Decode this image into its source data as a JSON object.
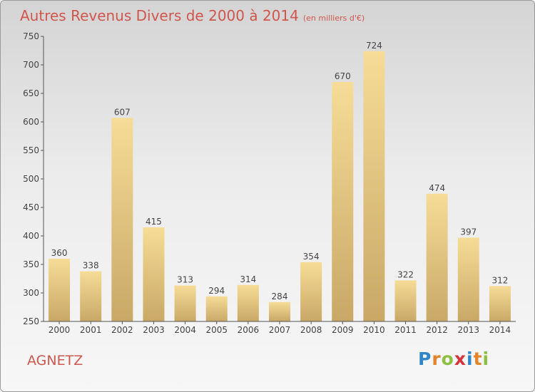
{
  "header": {
    "title": "Autres Revenus Divers de 2000 à 2014",
    "subtitle": "(en milliers d'€)"
  },
  "footer": {
    "town": "AGNETZ",
    "logo": "Proxiti"
  },
  "colors": {
    "title": "#d0564d",
    "bar_top": "#f6dc97",
    "bar_bottom": "#c9a866",
    "axis": "#555555"
  },
  "chart_data": {
    "type": "bar",
    "categories": [
      "2000",
      "2001",
      "2002",
      "2003",
      "2004",
      "2005",
      "2006",
      "2007",
      "2008",
      "2009",
      "2010",
      "2011",
      "2012",
      "2013",
      "2014"
    ],
    "values": [
      360,
      338,
      607,
      415,
      313,
      294,
      314,
      284,
      354,
      670,
      724,
      322,
      474,
      397,
      312
    ],
    "ylim": [
      250,
      750
    ],
    "yticks": [
      250,
      300,
      350,
      400,
      450,
      500,
      550,
      600,
      650,
      700,
      750
    ],
    "grid": false,
    "xlabel": "",
    "ylabel": ""
  }
}
